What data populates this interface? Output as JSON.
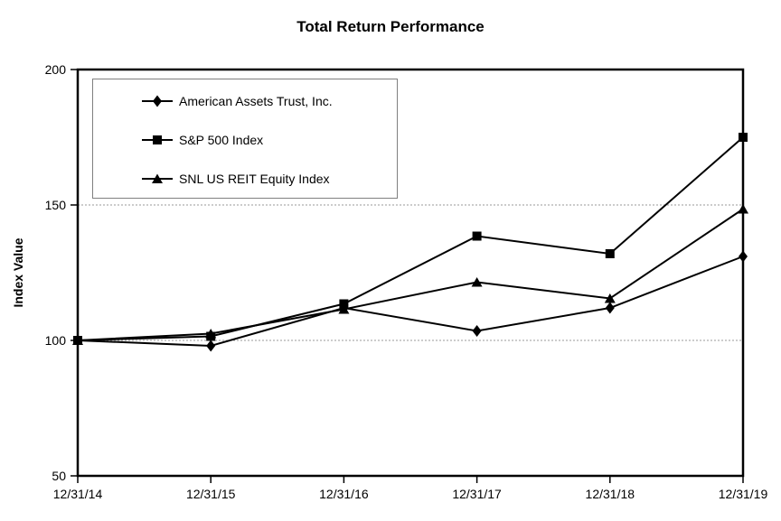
{
  "chart_data": {
    "type": "line",
    "title": "Total Return Performance",
    "ylabel": "Index Value",
    "xlabel": "",
    "categories": [
      "12/31/14",
      "12/31/15",
      "12/31/16",
      "12/31/17",
      "12/31/18",
      "12/31/19"
    ],
    "series": [
      {
        "name": "American Assets Trust, Inc.",
        "marker": "diamond",
        "values": [
          100,
          98,
          112,
          103.5,
          112,
          131
        ]
      },
      {
        "name": "S&P 500 Index",
        "marker": "square",
        "values": [
          100,
          101.5,
          113.5,
          138.5,
          132,
          175
        ]
      },
      {
        "name": "SNL US REIT Equity Index",
        "marker": "triangle",
        "values": [
          100,
          102.5,
          111.5,
          121.5,
          115.5,
          148.5
        ]
      }
    ],
    "ylim": [
      50,
      200
    ],
    "yticks": [
      50,
      100,
      150,
      200
    ],
    "gridlines": [
      100,
      150
    ],
    "grid_style": "dashed",
    "legend_position": "top-left-inside",
    "colors": {
      "line": "#000000",
      "text": "#000000",
      "grid": "#999999",
      "legend_border": "#808080",
      "background": "#ffffff"
    }
  }
}
